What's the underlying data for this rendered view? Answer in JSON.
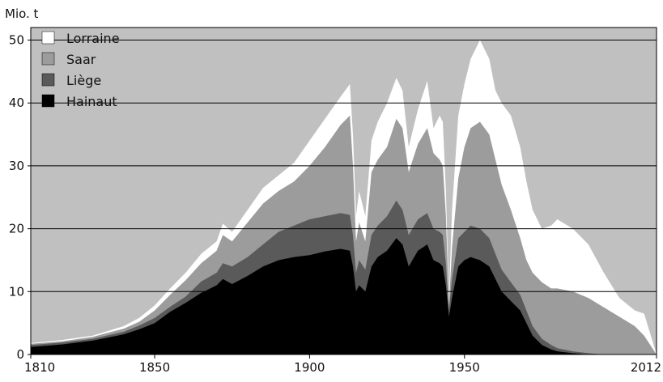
{
  "chart_data": {
    "type": "area",
    "stacked": true,
    "ylabel": "Mio. t",
    "xlim": [
      1810,
      2012
    ],
    "ylim": [
      0,
      52
    ],
    "x_ticks": [
      1810,
      1850,
      1900,
      1950,
      2012
    ],
    "x_tick_labels": [
      "1810",
      "1850",
      "1900",
      "1950",
      "2012"
    ],
    "y_ticks": [
      0,
      10,
      20,
      30,
      40,
      50
    ],
    "y_tick_labels": [
      "0",
      "10",
      "20",
      "30",
      "40",
      "50"
    ],
    "grid": "horizontal",
    "legend": "top-left",
    "background_color": "#c0c0c0",
    "series": [
      {
        "name": "Hainaut",
        "color": "#000000",
        "points": [
          [
            1810,
            1.2
          ],
          [
            1820,
            1.6
          ],
          [
            1830,
            2.2
          ],
          [
            1840,
            3.2
          ],
          [
            1845,
            4.0
          ],
          [
            1850,
            5.0
          ],
          [
            1855,
            6.8
          ],
          [
            1860,
            8.2
          ],
          [
            1865,
            9.8
          ],
          [
            1870,
            11.0
          ],
          [
            1872,
            12.0
          ],
          [
            1875,
            11.2
          ],
          [
            1880,
            12.5
          ],
          [
            1885,
            14.0
          ],
          [
            1890,
            15.0
          ],
          [
            1895,
            15.5
          ],
          [
            1900,
            15.8
          ],
          [
            1905,
            16.4
          ],
          [
            1910,
            16.8
          ],
          [
            1913,
            16.5
          ],
          [
            1914,
            14.0
          ],
          [
            1915,
            10.0
          ],
          [
            1916,
            11.0
          ],
          [
            1918,
            10.0
          ],
          [
            1920,
            14.0
          ],
          [
            1922,
            15.5
          ],
          [
            1925,
            16.5
          ],
          [
            1928,
            18.5
          ],
          [
            1930,
            17.5
          ],
          [
            1932,
            14.0
          ],
          [
            1935,
            16.5
          ],
          [
            1938,
            17.5
          ],
          [
            1940,
            15.0
          ],
          [
            1942,
            14.5
          ],
          [
            1943,
            14.0
          ],
          [
            1944,
            11.0
          ],
          [
            1945,
            6.0
          ],
          [
            1946,
            9.0
          ],
          [
            1948,
            14.0
          ],
          [
            1950,
            15.0
          ],
          [
            1952,
            15.5
          ],
          [
            1955,
            15.0
          ],
          [
            1958,
            14.0
          ],
          [
            1960,
            12.0
          ],
          [
            1962,
            10.0
          ],
          [
            1965,
            8.5
          ],
          [
            1968,
            7.0
          ],
          [
            1970,
            5.0
          ],
          [
            1972,
            3.0
          ],
          [
            1975,
            1.5
          ],
          [
            1978,
            0.8
          ],
          [
            1980,
            0.5
          ],
          [
            1985,
            0.2
          ],
          [
            1990,
            0
          ],
          [
            2012,
            0
          ]
        ]
      },
      {
        "name": "Liège",
        "color": "#5a5a5a",
        "points": [
          [
            1810,
            1.5
          ],
          [
            1820,
            1.9
          ],
          [
            1830,
            2.5
          ],
          [
            1840,
            3.6
          ],
          [
            1845,
            4.6
          ],
          [
            1850,
            5.8
          ],
          [
            1855,
            7.6
          ],
          [
            1860,
            9.2
          ],
          [
            1865,
            11.6
          ],
          [
            1870,
            13.0
          ],
          [
            1872,
            14.5
          ],
          [
            1875,
            14.0
          ],
          [
            1880,
            15.5
          ],
          [
            1885,
            17.5
          ],
          [
            1890,
            19.5
          ],
          [
            1895,
            20.5
          ],
          [
            1900,
            21.5
          ],
          [
            1905,
            22.0
          ],
          [
            1910,
            22.5
          ],
          [
            1913,
            22.2
          ],
          [
            1914,
            19.0
          ],
          [
            1915,
            13.0
          ],
          [
            1916,
            15.0
          ],
          [
            1918,
            13.5
          ],
          [
            1920,
            19.0
          ],
          [
            1922,
            20.5
          ],
          [
            1925,
            22.0
          ],
          [
            1928,
            24.5
          ],
          [
            1930,
            23.0
          ],
          [
            1932,
            19.0
          ],
          [
            1935,
            21.5
          ],
          [
            1938,
            22.5
          ],
          [
            1940,
            20.0
          ],
          [
            1942,
            19.5
          ],
          [
            1943,
            19.0
          ],
          [
            1944,
            14.5
          ],
          [
            1945,
            7.0
          ],
          [
            1946,
            12.0
          ],
          [
            1948,
            18.5
          ],
          [
            1950,
            19.5
          ],
          [
            1952,
            20.5
          ],
          [
            1955,
            20.0
          ],
          [
            1958,
            18.5
          ],
          [
            1960,
            16.0
          ],
          [
            1962,
            13.5
          ],
          [
            1965,
            11.5
          ],
          [
            1968,
            9.5
          ],
          [
            1970,
            7.0
          ],
          [
            1972,
            4.5
          ],
          [
            1975,
            2.5
          ],
          [
            1978,
            1.5
          ],
          [
            1980,
            1.0
          ],
          [
            1985,
            0.5
          ],
          [
            1990,
            0.2
          ],
          [
            1995,
            0
          ],
          [
            2012,
            0
          ]
        ]
      },
      {
        "name": "Saar",
        "color": "#9c9c9c",
        "points": [
          [
            1810,
            1.7
          ],
          [
            1820,
            2.1
          ],
          [
            1830,
            2.8
          ],
          [
            1840,
            4.1
          ],
          [
            1845,
            5.2
          ],
          [
            1850,
            7.0
          ],
          [
            1855,
            9.5
          ],
          [
            1860,
            11.8
          ],
          [
            1865,
            14.5
          ],
          [
            1870,
            16.5
          ],
          [
            1872,
            19.0
          ],
          [
            1875,
            18.0
          ],
          [
            1880,
            21.0
          ],
          [
            1885,
            24.0
          ],
          [
            1890,
            26.0
          ],
          [
            1895,
            27.5
          ],
          [
            1900,
            30.0
          ],
          [
            1905,
            33.0
          ],
          [
            1910,
            36.5
          ],
          [
            1913,
            38.0
          ],
          [
            1914,
            30.0
          ],
          [
            1915,
            18.0
          ],
          [
            1916,
            21.0
          ],
          [
            1918,
            18.0
          ],
          [
            1920,
            29.0
          ],
          [
            1922,
            31.0
          ],
          [
            1925,
            33.0
          ],
          [
            1928,
            37.5
          ],
          [
            1930,
            36.0
          ],
          [
            1932,
            29.0
          ],
          [
            1935,
            33.5
          ],
          [
            1938,
            36.0
          ],
          [
            1940,
            32.0
          ],
          [
            1942,
            31.0
          ],
          [
            1943,
            30.0
          ],
          [
            1944,
            22.0
          ],
          [
            1945,
            8.0
          ],
          [
            1946,
            17.0
          ],
          [
            1948,
            28.0
          ],
          [
            1950,
            33.0
          ],
          [
            1952,
            36.0
          ],
          [
            1955,
            37.0
          ],
          [
            1958,
            35.0
          ],
          [
            1960,
            31.0
          ],
          [
            1962,
            27.0
          ],
          [
            1965,
            23.0
          ],
          [
            1968,
            18.5
          ],
          [
            1970,
            15.0
          ],
          [
            1972,
            13.0
          ],
          [
            1975,
            11.5
          ],
          [
            1978,
            10.5
          ],
          [
            1980,
            10.5
          ],
          [
            1985,
            10.0
          ],
          [
            1990,
            9.0
          ],
          [
            1995,
            7.5
          ],
          [
            2000,
            6.0
          ],
          [
            2005,
            4.5
          ],
          [
            2008,
            3.0
          ],
          [
            2012,
            0
          ]
        ]
      },
      {
        "name": "Lorraine",
        "color": "#ffffff",
        "points": [
          [
            1810,
            1.8
          ],
          [
            1820,
            2.3
          ],
          [
            1830,
            3.0
          ],
          [
            1840,
            4.5
          ],
          [
            1845,
            5.8
          ],
          [
            1850,
            7.8
          ],
          [
            1855,
            10.5
          ],
          [
            1860,
            13.0
          ],
          [
            1865,
            16.0
          ],
          [
            1870,
            18.0
          ],
          [
            1872,
            20.8
          ],
          [
            1875,
            19.5
          ],
          [
            1880,
            23.0
          ],
          [
            1885,
            26.5
          ],
          [
            1890,
            28.5
          ],
          [
            1895,
            30.5
          ],
          [
            1900,
            34.0
          ],
          [
            1905,
            37.5
          ],
          [
            1910,
            41.0
          ],
          [
            1913,
            43.0
          ],
          [
            1914,
            35.0
          ],
          [
            1915,
            22.0
          ],
          [
            1916,
            26.0
          ],
          [
            1918,
            22.0
          ],
          [
            1920,
            34.0
          ],
          [
            1922,
            37.0
          ],
          [
            1925,
            40.0
          ],
          [
            1928,
            44.0
          ],
          [
            1930,
            42.0
          ],
          [
            1932,
            33.0
          ],
          [
            1935,
            39.0
          ],
          [
            1938,
            43.5
          ],
          [
            1940,
            36.0
          ],
          [
            1942,
            38.0
          ],
          [
            1943,
            37.0
          ],
          [
            1944,
            26.0
          ],
          [
            1945,
            9.0
          ],
          [
            1946,
            23.0
          ],
          [
            1948,
            38.0
          ],
          [
            1950,
            43.0
          ],
          [
            1952,
            47.0
          ],
          [
            1955,
            50.0
          ],
          [
            1958,
            47.0
          ],
          [
            1960,
            42.0
          ],
          [
            1962,
            40.0
          ],
          [
            1965,
            38.0
          ],
          [
            1968,
            33.0
          ],
          [
            1970,
            27.5
          ],
          [
            1972,
            23.0
          ],
          [
            1975,
            20.0
          ],
          [
            1978,
            20.5
          ],
          [
            1980,
            21.5
          ],
          [
            1985,
            20.0
          ],
          [
            1990,
            17.5
          ],
          [
            1995,
            13.0
          ],
          [
            2000,
            9.0
          ],
          [
            2005,
            7.0
          ],
          [
            2008,
            6.5
          ],
          [
            2012,
            0
          ]
        ]
      }
    ],
    "legend_order": [
      "Lorraine",
      "Saar",
      "Liège",
      "Hainaut"
    ]
  }
}
